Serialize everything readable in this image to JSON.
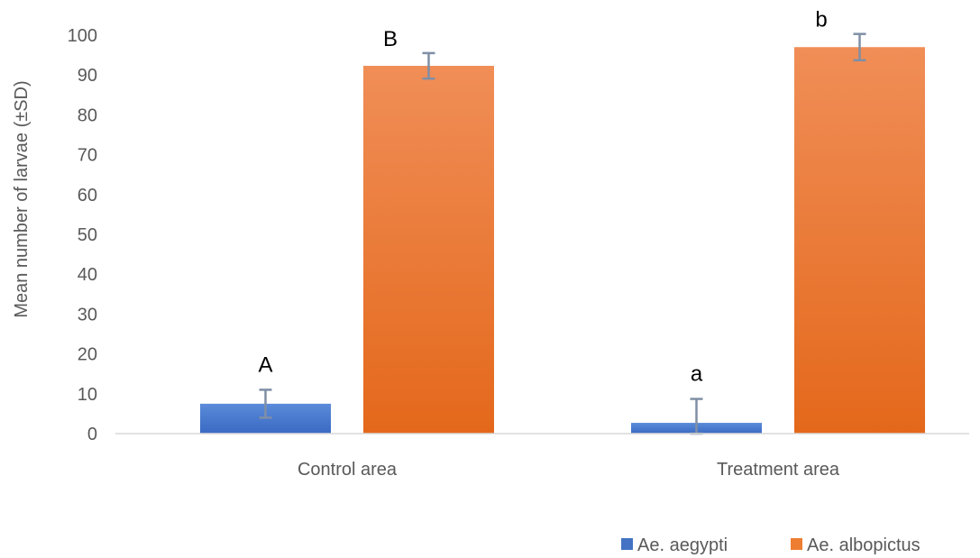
{
  "chart_data": {
    "type": "bar",
    "ylabel": "Mean number of larvae (±SD)",
    "xlabel": "",
    "ylim": [
      0,
      100
    ],
    "yticks": [
      0,
      10,
      20,
      30,
      40,
      50,
      60,
      70,
      80,
      90,
      100
    ],
    "grid": false,
    "legend_position": "bottom-right",
    "categories": [
      "Control area",
      "Treatment area"
    ],
    "series": [
      {
        "name": "Ae. aegypti",
        "color": "#4472C4",
        "values": [
          7.5,
          2.7
        ],
        "sd": [
          3.5,
          6.0
        ],
        "letters": [
          "A",
          "a"
        ]
      },
      {
        "name": "Ae. albopictus",
        "color": "#ED7D31",
        "values": [
          92.3,
          97.0
        ],
        "sd": [
          3.2,
          3.3
        ],
        "letters": [
          "B",
          "b"
        ]
      }
    ]
  }
}
